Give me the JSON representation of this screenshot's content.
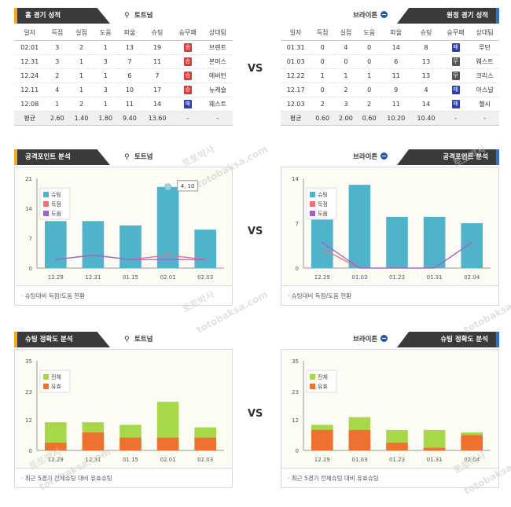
{
  "home_section": {
    "title": "홈 경기 성적",
    "team": "토트넘",
    "headers": [
      "일자",
      "득점",
      "실점",
      "도움",
      "파울",
      "슈팅",
      "승무패",
      "상대팀"
    ],
    "rows": [
      {
        "date": "02.01",
        "gf": "3",
        "ga": "2",
        "ast": "1",
        "foul": "13",
        "shots": "19",
        "result": "승",
        "result_type": "win",
        "opp": "브렌트"
      },
      {
        "date": "12.31",
        "gf": "3",
        "ga": "1",
        "ast": "3",
        "foul": "7",
        "shots": "11",
        "result": "승",
        "result_type": "win",
        "opp": "본머스"
      },
      {
        "date": "12.24",
        "gf": "2",
        "ga": "1",
        "ast": "1",
        "foul": "6",
        "shots": "7",
        "result": "승",
        "result_type": "win",
        "opp": "에버턴"
      },
      {
        "date": "12.11",
        "gf": "4",
        "ga": "1",
        "ast": "3",
        "foul": "10",
        "shots": "17",
        "result": "승",
        "result_type": "win",
        "opp": "뉴캐슬"
      },
      {
        "date": "12.08",
        "gf": "1",
        "ga": "2",
        "ast": "1",
        "foul": "11",
        "shots": "14",
        "result": "패",
        "result_type": "lose",
        "opp": "웨스트"
      }
    ],
    "avg": {
      "label": "평균",
      "gf": "2.60",
      "ga": "1.40",
      "ast": "1.80",
      "foul": "9.40",
      "shots": "13.60",
      "result": "-",
      "opp": "-"
    }
  },
  "away_section": {
    "title": "원정 경기 성적",
    "team": "브라이튼",
    "headers": [
      "일자",
      "득점",
      "실점",
      "도움",
      "파울",
      "슈팅",
      "승무패",
      "상대팀"
    ],
    "rows": [
      {
        "date": "01.31",
        "gf": "0",
        "ga": "4",
        "ast": "0",
        "foul": "14",
        "shots": "8",
        "result": "패",
        "result_type": "lose",
        "opp": "루턴"
      },
      {
        "date": "01.03",
        "gf": "0",
        "ga": "0",
        "ast": "0",
        "foul": "6",
        "shots": "13",
        "result": "무",
        "result_type": "draw",
        "opp": "웨스트"
      },
      {
        "date": "12.22",
        "gf": "1",
        "ga": "1",
        "ast": "1",
        "foul": "11",
        "shots": "13",
        "result": "무",
        "result_type": "draw",
        "opp": "크리스"
      },
      {
        "date": "12.17",
        "gf": "0",
        "ga": "2",
        "ast": "0",
        "foul": "9",
        "shots": "4",
        "result": "패",
        "result_type": "lose",
        "opp": "아스널"
      },
      {
        "date": "12.03",
        "gf": "2",
        "ga": "3",
        "ast": "2",
        "foul": "11",
        "shots": "14",
        "result": "패",
        "result_type": "lose",
        "opp": "첼시"
      }
    ],
    "avg": {
      "label": "평균",
      "gf": "0.60",
      "ga": "2.00",
      "ast": "0.60",
      "foul": "10.20",
      "shots": "10.40",
      "result": "-",
      "opp": "-"
    }
  },
  "vs_label": "VS",
  "attack_left": {
    "title": "공격포인트 분석",
    "team": "토트넘",
    "footer": "슈팅대비 득점/도움 현황"
  },
  "attack_right": {
    "title": "공격포인트 분석",
    "team": "브라이튼",
    "footer": "슈팅대비 득점/도움 현황"
  },
  "accuracy_left": {
    "title": "슈팅 정확도 분석",
    "team": "토트넘",
    "footer": "최근 5경기 전체슈팅 대비 유효슈팅"
  },
  "accuracy_right": {
    "title": "슈팅 정확도 분석",
    "team": "브라이튼",
    "footer": "최근 5경기 전체슈팅 대비 유효슈팅"
  },
  "watermark_text": [
    "토토박사",
    "totobaksa.com"
  ],
  "colors": {
    "shots": "#4fb3c9",
    "goals": "#f06e7a",
    "assists": "#a060d0",
    "total": "#a8d84a",
    "on_target": "#f07030",
    "header_dark": "#3a3a3a",
    "home_accent": "#f5a623",
    "away_accent": "#2f6fd6"
  },
  "chart_data": [
    {
      "type": "bar",
      "id": "attack-tottenham",
      "categories": [
        "12.29",
        "12.31",
        "01.15",
        "02.01",
        "02.03"
      ],
      "series": [
        {
          "name": "슈팅",
          "kind": "bar",
          "values": [
            11,
            11,
            10,
            19,
            9
          ]
        },
        {
          "name": "득점",
          "kind": "line",
          "values": [
            2,
            3,
            2,
            3,
            2
          ]
        },
        {
          "name": "도움",
          "kind": "line",
          "values": [
            2,
            3,
            2,
            2,
            2
          ]
        }
      ],
      "ylim": [
        0,
        21
      ],
      "yticks": [
        0,
        7,
        14,
        21
      ],
      "annotation": "4, 10",
      "legend": "top-left"
    },
    {
      "type": "bar",
      "id": "attack-brighton",
      "categories": [
        "12.29",
        "01.03",
        "01.23",
        "01.31",
        "02.04"
      ],
      "series": [
        {
          "name": "슈팅",
          "kind": "bar",
          "values": [
            8,
            13,
            8,
            8,
            7
          ]
        },
        {
          "name": "득점",
          "kind": "line",
          "values": [
            3,
            0,
            0,
            0,
            4
          ]
        },
        {
          "name": "도움",
          "kind": "line",
          "values": [
            4,
            0,
            0,
            0,
            4
          ]
        }
      ],
      "ylim": [
        0,
        14
      ],
      "yticks": [
        0,
        3.5,
        7,
        10.5,
        14
      ],
      "ytick_labels": [
        "0",
        "",
        "7",
        "",
        "14"
      ],
      "legend": "top-left"
    },
    {
      "type": "bar",
      "id": "accuracy-tottenham",
      "categories": [
        "12.29",
        "12.31",
        "01.15",
        "02.01",
        "02.03"
      ],
      "series": [
        {
          "name": "전체",
          "values": [
            11,
            11,
            10,
            19,
            9
          ]
        },
        {
          "name": "유효",
          "values": [
            3,
            7,
            5,
            5,
            5
          ]
        }
      ],
      "ylim": [
        0,
        35
      ],
      "yticks": [
        0,
        12,
        23,
        35
      ],
      "legend": "top-left"
    },
    {
      "type": "bar",
      "id": "accuracy-brighton",
      "categories": [
        "12.29",
        "01.03",
        "01.23",
        "01.31",
        "02.04"
      ],
      "series": [
        {
          "name": "전체",
          "values": [
            10,
            13,
            8,
            8,
            7
          ]
        },
        {
          "name": "유효",
          "values": [
            8,
            8,
            3,
            1,
            6
          ]
        }
      ],
      "ylim": [
        0,
        35
      ],
      "yticks": [
        0,
        12,
        23,
        35
      ],
      "legend": "top-left"
    }
  ]
}
